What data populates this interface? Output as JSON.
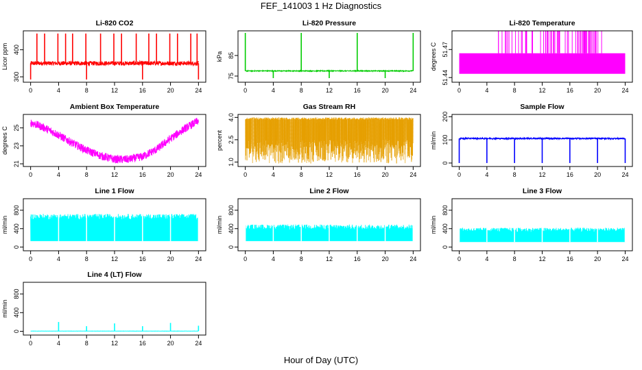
{
  "figure": {
    "title": "FEF_141003  1 Hz Diagnostics",
    "xlabel": "Hour of Day (UTC)"
  },
  "chart_data": [
    {
      "type": "line",
      "title": "Li-820 CO2",
      "ylabel": "Licor ppm",
      "color": "#ff0000",
      "xlim": [
        0,
        24
      ],
      "ylim": [
        280,
        470
      ],
      "xticks": [
        "0",
        "4",
        "8",
        "12",
        "16",
        "20",
        "24"
      ],
      "yticks": [
        300,
        400
      ],
      "pattern": "baseline_spikes",
      "baseline": 350,
      "noise": 8,
      "spikes_up_x": [
        0.9,
        2.0,
        3.9,
        5.0,
        6.0,
        7.9,
        10.0,
        11.9,
        13.0,
        15.1,
        16.9,
        18.0,
        19.9,
        21.0,
        22.9,
        23.8
      ],
      "spikes_up_y": [
        460
      ],
      "spikes_down_x": [
        0.0,
        8.0,
        16.0,
        24.0
      ],
      "spikes_down_y": [
        290
      ]
    },
    {
      "type": "line",
      "title": "Li-820 Pressure",
      "ylabel": "kPa",
      "color": "#00cc00",
      "xlim": [
        0,
        24
      ],
      "ylim": [
        72,
        97
      ],
      "xticks": [
        "0",
        "4",
        "8",
        "12",
        "16",
        "20",
        "24"
      ],
      "yticks": [
        75,
        85
      ],
      "pattern": "baseline_spikes",
      "baseline": 77.5,
      "noise": 0.2,
      "spikes_up_x": [
        0.0,
        8.0,
        16.0,
        24.0
      ],
      "spikes_up_y": [
        96
      ],
      "spikes_down_x": [
        4.0,
        12.0,
        20.0
      ],
      "spikes_down_y": [
        74
      ]
    },
    {
      "type": "area",
      "title": "Li-820 Temperature",
      "ylabel": "degrees C",
      "color": "#ff00ff",
      "xlim": [
        0,
        24
      ],
      "ylim": [
        51.435,
        51.49
      ],
      "xticks": [
        "0",
        "4",
        "8",
        "12",
        "16",
        "20",
        "24"
      ],
      "yticks": [
        "51.44",
        "51.47"
      ],
      "pattern": "temp_band",
      "band": [
        51.444,
        51.466
      ],
      "spike_top": 51.49,
      "spike_range": [
        5.4,
        21.0
      ]
    },
    {
      "type": "line",
      "title": "Ambient Box Temperature",
      "ylabel": "degrees C",
      "color": "#ff00ff",
      "xlim": [
        0,
        24
      ],
      "ylim": [
        20.7,
        26.5
      ],
      "xticks": [
        "0",
        "4",
        "8",
        "12",
        "16",
        "20",
        "24"
      ],
      "yticks": [
        21,
        23,
        25
      ],
      "pattern": "thick_curve",
      "x": [
        0,
        2,
        4,
        6,
        8,
        10,
        12,
        14,
        16,
        18,
        20,
        22,
        24
      ],
      "y": [
        25.6,
        25.0,
        24.2,
        23.3,
        22.5,
        21.9,
        21.5,
        21.5,
        21.8,
        22.6,
        23.8,
        24.9,
        25.8
      ],
      "spread": 0.45
    },
    {
      "type": "line",
      "title": "Gas Stream RH",
      "ylabel": "percent",
      "color": "#e69f00",
      "xlim": [
        0,
        24
      ],
      "ylim": [
        0.7,
        4.2
      ],
      "xticks": [
        "0",
        "4",
        "8",
        "12",
        "16",
        "20",
        "24"
      ],
      "yticks": [
        "1.0",
        "2.5",
        "4.0"
      ],
      "pattern": "dense_noise",
      "top": 4.0,
      "bottom_range": [
        0.9,
        2.5
      ]
    },
    {
      "type": "line",
      "title": "Sample Flow",
      "ylabel": "ml/min",
      "color": "#0000ff",
      "xlim": [
        0,
        24
      ],
      "ylim": [
        -15,
        210
      ],
      "xticks": [
        "0",
        "4",
        "8",
        "12",
        "16",
        "20",
        "24"
      ],
      "yticks": [
        0,
        100,
        200
      ],
      "pattern": "baseline_spikes",
      "baseline": 106,
      "noise": 3,
      "spikes_up_x": [],
      "spikes_up_y": [
        106
      ],
      "spikes_down_x": [
        0.0,
        4.0,
        8.0,
        12.0,
        16.0,
        20.0,
        24.0
      ],
      "spikes_down_y": [
        0
      ]
    },
    {
      "type": "area",
      "title": "Line 1 Flow",
      "ylabel": "ml/min",
      "color": "#00ffff",
      "xlim": [
        0,
        24
      ],
      "ylim": [
        -80,
        1050
      ],
      "xticks": [
        "0",
        "4",
        "8",
        "12",
        "16",
        "20",
        "24"
      ],
      "yticks": [
        0,
        400,
        800
      ],
      "pattern": "band_noise",
      "low": 130,
      "high_range": [
        600,
        720
      ],
      "gaps": [
        4.0,
        8.0,
        12.0,
        16.0,
        20.0,
        24.0
      ]
    },
    {
      "type": "area",
      "title": "Line 2 Flow",
      "ylabel": "ml/min",
      "color": "#00ffff",
      "xlim": [
        0,
        24
      ],
      "ylim": [
        -80,
        1050
      ],
      "xticks": [
        "0",
        "4",
        "8",
        "12",
        "16",
        "20",
        "24"
      ],
      "yticks": [
        0,
        400,
        800
      ],
      "pattern": "band_noise",
      "low": 130,
      "high_range": [
        380,
        490
      ],
      "gaps": [
        0.0,
        4.0,
        8.0,
        12.0,
        16.0,
        20.0,
        24.0
      ]
    },
    {
      "type": "area",
      "title": "Line 3 Flow",
      "ylabel": "ml/min",
      "color": "#00ffff",
      "xlim": [
        0,
        24
      ],
      "ylim": [
        -80,
        1050
      ],
      "xticks": [
        "0",
        "4",
        "8",
        "12",
        "16",
        "20",
        "24"
      ],
      "yticks": [
        0,
        400,
        800
      ],
      "pattern": "band_noise",
      "low": 110,
      "high_range": [
        330,
        420
      ],
      "gaps": [
        0.0,
        4.0,
        8.0,
        12.0,
        16.0,
        20.0,
        24.0
      ]
    },
    {
      "type": "line",
      "title": "Line 4 (LT) Flow",
      "ylabel": "ml/min",
      "color": "#00ffff",
      "xlim": [
        0,
        24
      ],
      "ylim": [
        -80,
        1050
      ],
      "xticks": [
        "0",
        "4",
        "8",
        "12",
        "16",
        "20",
        "24"
      ],
      "yticks": [
        0,
        400,
        800
      ],
      "pattern": "baseline_spikes",
      "baseline": 5,
      "noise": 2,
      "spikes_up_x": [
        4.0,
        8.0,
        12.0,
        16.0,
        20.0,
        24.0
      ],
      "spikes_up_y": [
        200,
        110,
        170,
        110,
        180,
        120
      ],
      "spikes_down_x": [],
      "spikes_down_y": [
        0
      ]
    }
  ]
}
